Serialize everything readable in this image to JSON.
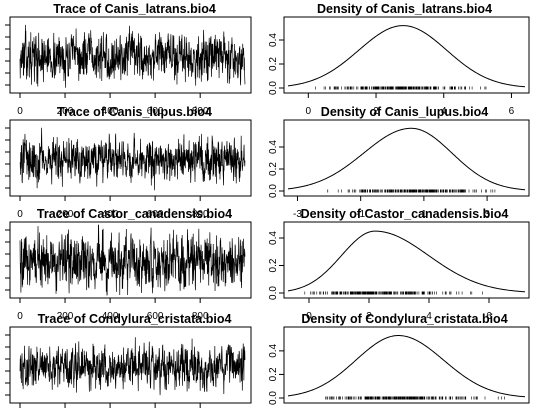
{
  "chart_data": [
    {
      "type": "line",
      "title": "Trace of Canis_latrans.bio4",
      "x_ticks": [
        "0",
        "200",
        "400",
        "600",
        "800"
      ],
      "y_ticks": [],
      "series": [
        {
          "values_summary": {
            "n": 1000,
            "mean": 2.0,
            "sd": 0.75
          }
        }
      ],
      "grid": false
    },
    {
      "type": "area",
      "title": "Density of Canis_latrans.bio4",
      "x_ticks": [
        "0",
        "2",
        "4",
        "6"
      ],
      "y_ticks": [
        "0.0",
        "0.2",
        "0.4"
      ],
      "xlim": [
        -0.6,
        6.4
      ],
      "ylim": [
        0,
        0.55
      ],
      "density_peak": {
        "x": 2.8,
        "y": 0.52
      },
      "grid": false
    },
    {
      "type": "line",
      "title": "Trace of Canis_lupus.bio4",
      "x_ticks": [
        "0",
        "200",
        "400",
        "600",
        "800"
      ],
      "y_ticks": [],
      "series": [
        {
          "values_summary": {
            "n": 1000,
            "mean": 0.5,
            "sd": 0.7
          }
        }
      ],
      "grid": false
    },
    {
      "type": "area",
      "title": "Density of Canis_lupus.bio4",
      "x_ticks": [
        "-3",
        "-1",
        "1",
        "3"
      ],
      "y_ticks": [
        "0.0",
        "0.2",
        "0.4"
      ],
      "xlim": [
        -3.3,
        4.2
      ],
      "ylim": [
        0,
        0.6
      ],
      "density_peak": {
        "x": 0.6,
        "y": 0.57
      },
      "grid": false
    },
    {
      "type": "line",
      "title": "Trace of Castor_canadensis.bio4",
      "x_ticks": [
        "0",
        "200",
        "400",
        "600",
        "800"
      ],
      "y_ticks": [],
      "series": [
        {
          "values_summary": {
            "n": 1000,
            "mean": 2.0,
            "sd": 0.9
          }
        }
      ],
      "grid": false
    },
    {
      "type": "area",
      "title": "Density of Castor_canadensis.bio4",
      "x_ticks": [
        "0",
        "2",
        "4",
        "6"
      ],
      "y_ticks": [
        "0.0",
        "0.2",
        "0.4"
      ],
      "xlim": [
        -0.7,
        7.2
      ],
      "ylim": [
        0,
        0.48
      ],
      "density_peak": {
        "x": 2.2,
        "y": 0.45
      },
      "grid": false
    },
    {
      "type": "line",
      "title": "Trace of Condylura_cristata.bio4",
      "x_ticks": [],
      "y_ticks": [],
      "series": [
        {
          "values_summary": {
            "n": 1000,
            "mean": 2.0,
            "sd": 0.7
          }
        }
      ],
      "grid": false
    },
    {
      "type": "area",
      "title": "Density of Condylura_cristata.bio4",
      "x_ticks": [],
      "y_ticks": [
        "0.0",
        "0.2",
        "0.4"
      ],
      "xlim": [
        -0.5,
        6.8
      ],
      "ylim": [
        0,
        0.56
      ],
      "density_peak": {
        "x": 2.9,
        "y": 0.53
      },
      "grid": false
    }
  ]
}
